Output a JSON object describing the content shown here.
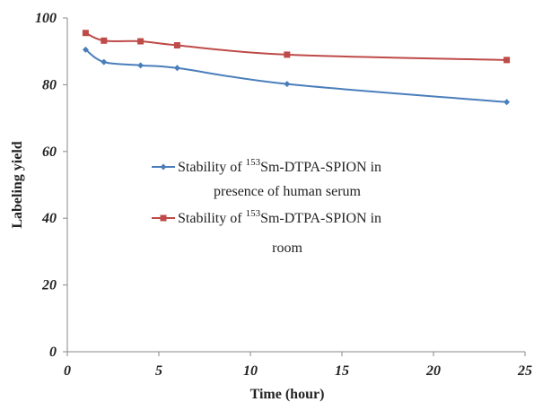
{
  "chart_data": {
    "type": "line",
    "xlabel": "Time (hour)",
    "ylabel": "Labeling yield",
    "xlim": [
      0,
      25
    ],
    "ylim": [
      0,
      100
    ],
    "xticks": [
      0,
      5,
      10,
      15,
      20,
      25
    ],
    "yticks": [
      0,
      20,
      40,
      60,
      80,
      100
    ],
    "grid": false,
    "legend_position": "center",
    "series": [
      {
        "name": "Stability of 153Sm-DTPA-SPION in presence of human serum",
        "legend_prefix": "Stability of ",
        "legend_sup": "153",
        "legend_rest": "Sm-DTPA-SPION in",
        "legend_line2": "presence of human serum",
        "color": "#4a7ebb",
        "marker": "diamond",
        "x": [
          1,
          2,
          4,
          6,
          12,
          24
        ],
        "y": [
          90.5,
          86.8,
          85.8,
          85.0,
          80.2,
          74.8
        ]
      },
      {
        "name": "Stability of 153Sm-DTPA-SPION in room",
        "legend_prefix": "Stability of ",
        "legend_sup": "153",
        "legend_rest": "Sm-DTPA-SPION in",
        "legend_line2": "room",
        "color": "#be4b48",
        "marker": "square",
        "x": [
          1,
          2,
          4,
          6,
          12,
          24
        ],
        "y": [
          95.5,
          93.2,
          93.0,
          91.8,
          89.0,
          87.4
        ]
      }
    ]
  }
}
